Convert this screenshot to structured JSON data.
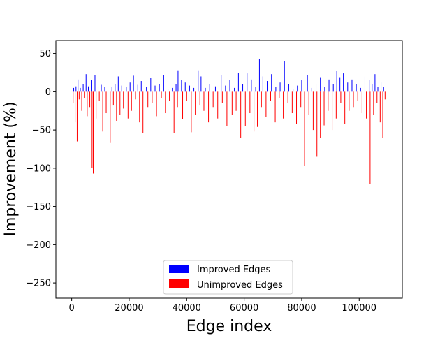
{
  "chart_data": {
    "type": "bar",
    "xlabel": "Edge index",
    "ylabel": "Improvement (%)",
    "xlim": [
      -5500,
      115000
    ],
    "ylim": [
      -270,
      67
    ],
    "xticks": [
      0,
      20000,
      40000,
      60000,
      80000,
      100000
    ],
    "xtick_labels": [
      "0",
      "20000",
      "40000",
      "60000",
      "80000",
      "100000"
    ],
    "yticks": [
      50,
      0,
      -50,
      -100,
      -150,
      -200,
      -250
    ],
    "ytick_labels": [
      "50",
      "0",
      "−50",
      "−100",
      "−150",
      "−200",
      "−250"
    ],
    "grid": false,
    "legend_position": "lower center",
    "series": [
      {
        "name": "Improved Edges",
        "color": "#0000ff",
        "x": [
          700,
          1500,
          2200,
          3000,
          4000,
          5000,
          5800,
          7000,
          8100,
          9200,
          10300,
          11500,
          12600,
          14000,
          15100,
          16200,
          17400,
          19000,
          20300,
          21500,
          23000,
          24200,
          26000,
          27500,
          29000,
          30500,
          32000,
          33500,
          35000,
          36300,
          37000,
          38200,
          39500,
          41000,
          42500,
          44000,
          45000,
          46500,
          48000,
          50000,
          52000,
          53500,
          55000,
          56600,
          58000,
          59500,
          61000,
          62500,
          64000,
          65300,
          66500,
          68000,
          69500,
          71000,
          72500,
          74000,
          75500,
          77000,
          78500,
          80000,
          82000,
          83500,
          85000,
          86500,
          88000,
          89500,
          91000,
          92200,
          93300,
          94500,
          96000,
          97500,
          99000,
          100500,
          102000,
          103500,
          104500,
          105500,
          106500,
          107600,
          108500
        ],
        "values": [
          5,
          7,
          16,
          5,
          10,
          23,
          7,
          15,
          22,
          6,
          9,
          6,
          23,
          6,
          10,
          20,
          8,
          6,
          12,
          21,
          9,
          14,
          6,
          18,
          8,
          10,
          22,
          4,
          5,
          10,
          28,
          15,
          12,
          8,
          5,
          28,
          20,
          5,
          10,
          7,
          22,
          8,
          15,
          5,
          25,
          10,
          24,
          16,
          6,
          43,
          20,
          14,
          23,
          6,
          12,
          40,
          10,
          4,
          8,
          15,
          22,
          5,
          10,
          19,
          6,
          16,
          10,
          27,
          19,
          24,
          12,
          16,
          10,
          5,
          20,
          15,
          10,
          23,
          6,
          12,
          6
        ]
      },
      {
        "name": "Unimproved Edges",
        "color": "#ff0000",
        "x": [
          500,
          1200,
          1900,
          2600,
          3500,
          4400,
          5400,
          6300,
          7100,
          7500,
          8500,
          9600,
          10800,
          12000,
          13400,
          14500,
          15600,
          16800,
          18000,
          19600,
          20800,
          22200,
          23600,
          24800,
          26500,
          28000,
          29500,
          31200,
          32600,
          34000,
          35600,
          36800,
          38600,
          40000,
          41600,
          43000,
          44600,
          46000,
          47600,
          49200,
          50800,
          52400,
          54000,
          55800,
          57200,
          58800,
          60400,
          62000,
          63400,
          64600,
          66000,
          67600,
          69200,
          70800,
          72200,
          73600,
          75200,
          76700,
          78200,
          79700,
          81000,
          82500,
          84000,
          85300,
          86500,
          87800,
          89200,
          90600,
          92000,
          93600,
          95000,
          96500,
          98000,
          99500,
          101000,
          102500,
          103800,
          105000,
          106200,
          107300,
          108200,
          109000
        ],
        "values": [
          -15,
          -40,
          -65,
          -10,
          -25,
          -8,
          -32,
          -20,
          -100,
          -107,
          -35,
          -12,
          -52,
          -28,
          -67,
          -18,
          -38,
          -30,
          -22,
          -35,
          -25,
          -10,
          -40,
          -54,
          -20,
          -15,
          -32,
          -8,
          -28,
          -12,
          -54,
          -20,
          -36,
          -12,
          -53,
          -30,
          -18,
          -25,
          -40,
          -20,
          -35,
          -15,
          -45,
          -30,
          -25,
          -60,
          -45,
          -28,
          -52,
          -46,
          -20,
          -33,
          -12,
          -40,
          -8,
          -35,
          -15,
          -28,
          -42,
          -20,
          -97,
          -30,
          -50,
          -85,
          -60,
          -44,
          -25,
          -50,
          -35,
          -15,
          -42,
          -25,
          -20,
          -12,
          -28,
          -35,
          -121,
          -30,
          -15,
          -40,
          -60,
          -10
        ]
      }
    ]
  }
}
